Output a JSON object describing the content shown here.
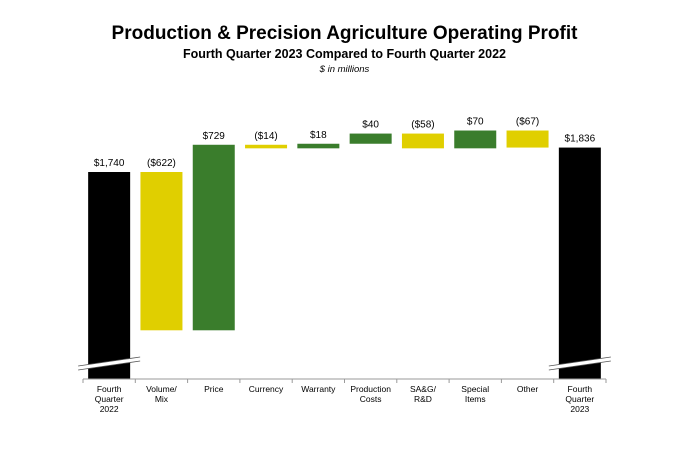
{
  "title": "Production & Precision Agriculture Operating Profit",
  "subtitle": "Fourth Quarter 2023 Compared to Fourth Quarter 2022",
  "units": "$ in millions",
  "colors": {
    "total": "#000000",
    "increase": "#3a7d2c",
    "decrease": "#e0cf00",
    "axis": "#9a9a9a"
  },
  "chart_data": {
    "type": "bar",
    "subtype": "waterfall",
    "axis_break": true,
    "categories": [
      [
        "Fourth",
        "Quarter",
        "2022"
      ],
      [
        "Volume/",
        "Mix"
      ],
      [
        "Price"
      ],
      [
        "Currency"
      ],
      [
        "Warranty"
      ],
      [
        "Production",
        "Costs"
      ],
      [
        "SA&G/",
        "R&D"
      ],
      [
        "Special",
        "Items"
      ],
      [
        "Other"
      ],
      [
        "Fourth",
        "Quarter",
        "2023"
      ]
    ],
    "values": [
      1740,
      -622,
      729,
      -14,
      18,
      40,
      -58,
      70,
      -67,
      1836
    ],
    "kinds": [
      "total",
      "delta",
      "delta",
      "delta",
      "delta",
      "delta",
      "delta",
      "delta",
      "delta",
      "total"
    ],
    "labels": [
      "$1,740",
      "($622)",
      "$729",
      "($14)",
      "$18",
      "$40",
      "($58)",
      "$70",
      "($67)",
      "$1,836"
    ]
  }
}
